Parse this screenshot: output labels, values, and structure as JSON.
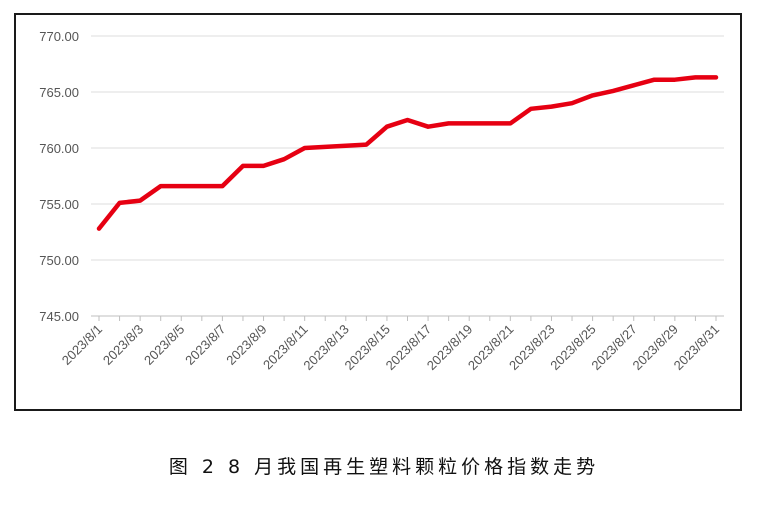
{
  "caption": "图 2  8 月我国再生塑料颗粒价格指数走势",
  "colors": {
    "line": "#e60012",
    "grid": "#dcdcdc",
    "text": "#555555"
  },
  "chart_data": {
    "type": "line",
    "title": "",
    "xlabel": "",
    "ylabel": "",
    "ylim": [
      745,
      770
    ],
    "yticks": [
      "745.00",
      "750.00",
      "755.00",
      "760.00",
      "765.00",
      "770.00"
    ],
    "grid": true,
    "legend": "none",
    "x": [
      "2023/8/1",
      "2023/8/2",
      "2023/8/3",
      "2023/8/4",
      "2023/8/5",
      "2023/8/6",
      "2023/8/7",
      "2023/8/8",
      "2023/8/9",
      "2023/8/10",
      "2023/8/11",
      "2023/8/12",
      "2023/8/13",
      "2023/8/14",
      "2023/8/15",
      "2023/8/16",
      "2023/8/17",
      "2023/8/18",
      "2023/8/19",
      "2023/8/20",
      "2023/8/21",
      "2023/8/22",
      "2023/8/23",
      "2023/8/24",
      "2023/8/25",
      "2023/8/26",
      "2023/8/27",
      "2023/8/28",
      "2023/8/29",
      "2023/8/30",
      "2023/8/31"
    ],
    "xtick_labels": [
      "2023/8/1",
      "2023/8/3",
      "2023/8/5",
      "2023/8/7",
      "2023/8/9",
      "2023/8/11",
      "2023/8/13",
      "2023/8/15",
      "2023/8/17",
      "2023/8/19",
      "2023/8/21",
      "2023/8/23",
      "2023/8/25",
      "2023/8/27",
      "2023/8/29",
      "2023/8/31"
    ],
    "series": [
      {
        "values": [
          752.8,
          755.1,
          755.3,
          756.6,
          756.6,
          756.6,
          756.6,
          758.4,
          758.4,
          759.0,
          760.0,
          760.1,
          760.2,
          760.3,
          761.9,
          762.5,
          761.9,
          762.2,
          762.2,
          762.2,
          762.2,
          763.5,
          763.7,
          764.0,
          764.7,
          765.1,
          765.6,
          766.1,
          766.1,
          766.3,
          766.3
        ]
      }
    ]
  }
}
